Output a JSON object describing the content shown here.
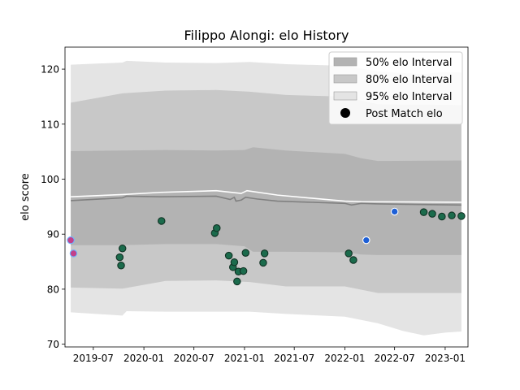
{
  "chart_data": {
    "type": "line",
    "title": "Filippo Alongi: elo History",
    "xlabel": "",
    "ylabel": "elo score",
    "ylim": [
      69.5,
      124
    ],
    "xlim": [
      "2019-03-20",
      "2023-03-25"
    ],
    "yticks": [
      70,
      80,
      90,
      100,
      110,
      120
    ],
    "xticks": [
      "2019-07",
      "2020-01",
      "2020-07",
      "2021-01",
      "2021-07",
      "2022-01",
      "2022-07",
      "2023-01"
    ],
    "grid": false,
    "legend_position": "top-right",
    "legend": [
      {
        "label": "50% elo Interval",
        "color": "#b3b3b3",
        "kind": "band"
      },
      {
        "label": "80% elo Interval",
        "color": "#c8c8c8",
        "kind": "band"
      },
      {
        "label": "95% elo Interval",
        "color": "#e4e4e4",
        "kind": "band"
      },
      {
        "label": "Post Match elo",
        "color": "#000000",
        "kind": "marker"
      }
    ],
    "bands": [
      {
        "name": "95% elo Interval",
        "color": "#e4e4e4",
        "x": [
          "2019-04-10",
          "2019-10-15",
          "2019-10-30",
          "2020-03-20",
          "2020-09-20",
          "2021-01-20",
          "2021-06-01",
          "2022-01-01",
          "2022-05-01",
          "2022-08-01",
          "2022-10-15",
          "2023-01-01",
          "2023-03-01"
        ],
        "upper": [
          120.8,
          121.2,
          121.5,
          121.2,
          121.1,
          121.3,
          120.9,
          120.6,
          119.6,
          119.3,
          119.1,
          119.5,
          119.4
        ],
        "lower": [
          75.8,
          75.2,
          76.0,
          75.9,
          75.9,
          75.9,
          75.5,
          75.0,
          73.8,
          72.4,
          71.6,
          72.1,
          72.3
        ]
      },
      {
        "name": "80% elo Interval",
        "color": "#c8c8c8",
        "x": [
          "2019-04-10",
          "2019-10-15",
          "2020-03-20",
          "2020-09-20",
          "2021-01-20",
          "2021-06-01",
          "2022-01-01",
          "2022-05-01",
          "2023-03-01"
        ],
        "upper": [
          113.9,
          115.6,
          116.1,
          116.2,
          115.9,
          115.3,
          115.0,
          113.6,
          113.5
        ],
        "lower": [
          80.3,
          80.1,
          81.5,
          81.6,
          81.3,
          80.5,
          80.5,
          79.3,
          79.3
        ]
      },
      {
        "name": "50% elo Interval",
        "color": "#b3b3b3",
        "x": [
          "2019-04-10",
          "2019-10-15",
          "2020-03-20",
          "2020-09-20",
          "2021-01-01",
          "2021-02-01",
          "2021-06-01",
          "2022-01-01",
          "2022-03-01",
          "2022-05-01",
          "2023-03-01"
        ],
        "upper": [
          105.1,
          105.2,
          105.3,
          105.2,
          105.3,
          105.8,
          105.2,
          104.6,
          103.8,
          103.3,
          103.4
        ],
        "lower": [
          88.0,
          88.0,
          88.2,
          88.2,
          87.8,
          86.8,
          86.8,
          86.7,
          86.3,
          86.2,
          86.2
        ]
      }
    ],
    "series": [
      {
        "color": "#808080",
        "x": [
          "2019-04-10",
          "2019-10-15",
          "2019-10-30",
          "2020-03-01",
          "2020-09-20",
          "2020-11-10",
          "2020-11-25",
          "2020-12-01",
          "2020-12-20",
          "2021-01-05",
          "2021-02-15",
          "2021-05-01",
          "2022-01-01",
          "2022-01-25",
          "2022-03-01",
          "2022-05-01",
          "2023-03-01"
        ],
        "values": [
          96.1,
          96.6,
          96.9,
          96.8,
          96.9,
          96.3,
          96.7,
          96.0,
          96.2,
          96.7,
          96.4,
          96.0,
          95.6,
          95.3,
          95.6,
          95.5,
          95.3
        ]
      },
      {
        "color": "#ffffff",
        "x": [
          "2019-04-10",
          "2019-10-15",
          "2020-03-01",
          "2020-09-20",
          "2020-12-20",
          "2021-01-10",
          "2021-05-01",
          "2022-01-01",
          "2022-03-01",
          "2023-03-01"
        ],
        "values": [
          96.8,
          97.2,
          97.6,
          97.9,
          97.4,
          97.9,
          97.1,
          96.0,
          95.9,
          95.8
        ]
      }
    ],
    "points": {
      "name": "Post Match elo",
      "x": [
        "2019-04-10",
        "2019-04-20",
        "2019-10-05",
        "2019-10-10",
        "2019-10-15",
        "2020-03-05",
        "2020-09-15",
        "2020-09-22",
        "2020-11-05",
        "2020-11-20",
        "2020-11-25",
        "2020-12-05",
        "2020-12-10",
        "2020-12-28",
        "2021-01-05",
        "2021-03-10",
        "2021-03-15",
        "2022-01-15",
        "2022-02-01",
        "2022-03-20",
        "2022-07-01",
        "2022-10-15",
        "2022-11-15",
        "2022-12-20",
        "2023-01-25",
        "2023-03-01"
      ],
      "y": [
        88.9,
        86.5,
        85.8,
        84.3,
        87.4,
        92.4,
        90.2,
        91.1,
        86.1,
        84.0,
        84.9,
        81.4,
        83.2,
        83.3,
        86.6,
        84.8,
        86.5,
        86.5,
        85.3,
        88.9,
        94.1,
        94.0,
        93.7,
        93.2,
        93.4,
        93.3
      ],
      "types": [
        "purple",
        "purple",
        "green",
        "green",
        "green",
        "green",
        "green",
        "green",
        "green",
        "green",
        "green",
        "green",
        "green",
        "green",
        "green",
        "green",
        "green",
        "green",
        "green",
        "blue",
        "blue",
        "green",
        "green",
        "green",
        "green",
        "green"
      ]
    },
    "marker_colors": {
      "green": {
        "fill": "#1b6b4c",
        "stroke": "#113224"
      },
      "blue": {
        "fill": "#1d5fd6",
        "stroke": "#ffffff"
      },
      "purple": {
        "fill": "#c2408a",
        "stroke": "#6fb3ff"
      }
    },
    "axis_color": "#000000"
  }
}
